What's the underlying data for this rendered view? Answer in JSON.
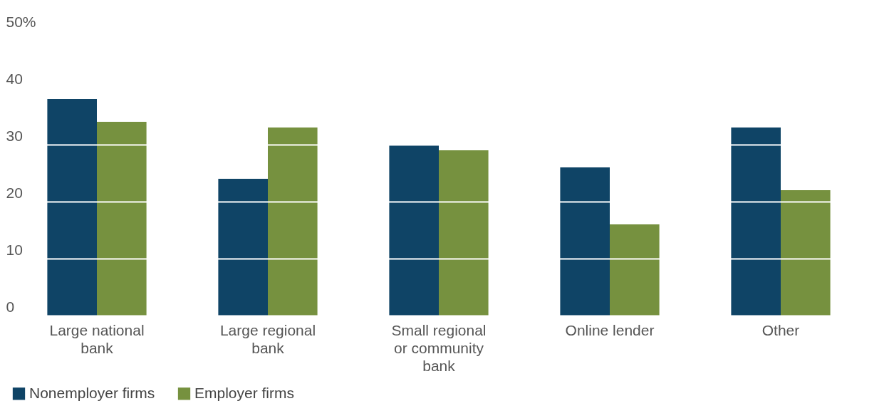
{
  "chart_data": {
    "type": "bar",
    "categories": [
      "Large national bank",
      "Large regional bank",
      "Small regional or community bank",
      "Online lender",
      "Other"
    ],
    "series": [
      {
        "name": "Nonemployer firms",
        "color": "#0f4466",
        "values": [
          38,
          24,
          30,
          26,
          33
        ]
      },
      {
        "name": "Employer firms",
        "color": "#76913f",
        "values": [
          34,
          33,
          29,
          16,
          22
        ]
      }
    ],
    "ylim": [
      0,
      50
    ],
    "yticks": [
      0,
      10,
      20,
      30,
      40,
      {
        "value": 50,
        "label": "50%"
      }
    ],
    "grid": "y",
    "legend": "bottom"
  }
}
